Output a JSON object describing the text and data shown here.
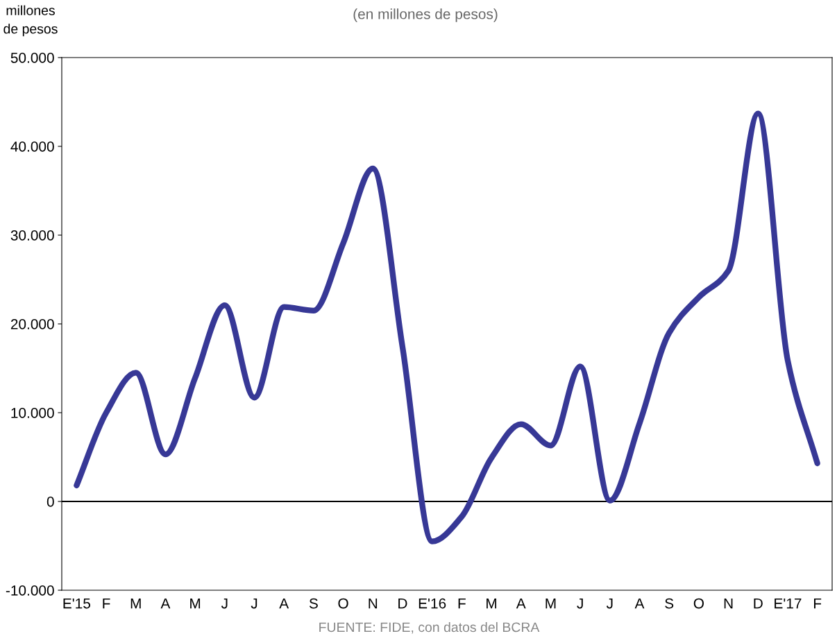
{
  "chart_data": {
    "type": "line",
    "subtitle": "(en millones de pesos)",
    "ylabel": "millones\nde pesos",
    "categories": [
      "E'15",
      "F",
      "M",
      "A",
      "M",
      "J",
      "J",
      "A",
      "S",
      "O",
      "N",
      "D",
      "E'16",
      "F",
      "M",
      "A",
      "M",
      "J",
      "J",
      "A",
      "S",
      "O",
      "N",
      "D",
      "E'17",
      "F"
    ],
    "series": [
      {
        "color": "#373896",
        "values": [
          1800,
          10000,
          14500,
          5300,
          13900,
          22100,
          11700,
          21900,
          21500,
          29100,
          37500,
          17400,
          -4500,
          -1700,
          4900,
          8700,
          6300,
          15200,
          100,
          8800,
          19000,
          23000,
          26000,
          43700,
          15900,
          4300
        ]
      }
    ],
    "ylim": [
      -10000,
      50000
    ],
    "yticks": [
      {
        "value": -10000,
        "label": "-10.000"
      },
      {
        "value": 0,
        "label": "0"
      },
      {
        "value": 10000,
        "label": "10.000"
      },
      {
        "value": 20000,
        "label": "20.000"
      },
      {
        "value": 30000,
        "label": "30.000"
      },
      {
        "value": 40000,
        "label": "40.000"
      },
      {
        "value": 50000,
        "label": "50.000"
      }
    ],
    "ref_lines": [
      {
        "axis": "y",
        "value": 0,
        "color": "#000000"
      }
    ],
    "grid": false,
    "marker": "none",
    "line_style": "solid",
    "annotations": [
      "FUENTE: FIDE, con datos del BCRA"
    ]
  }
}
